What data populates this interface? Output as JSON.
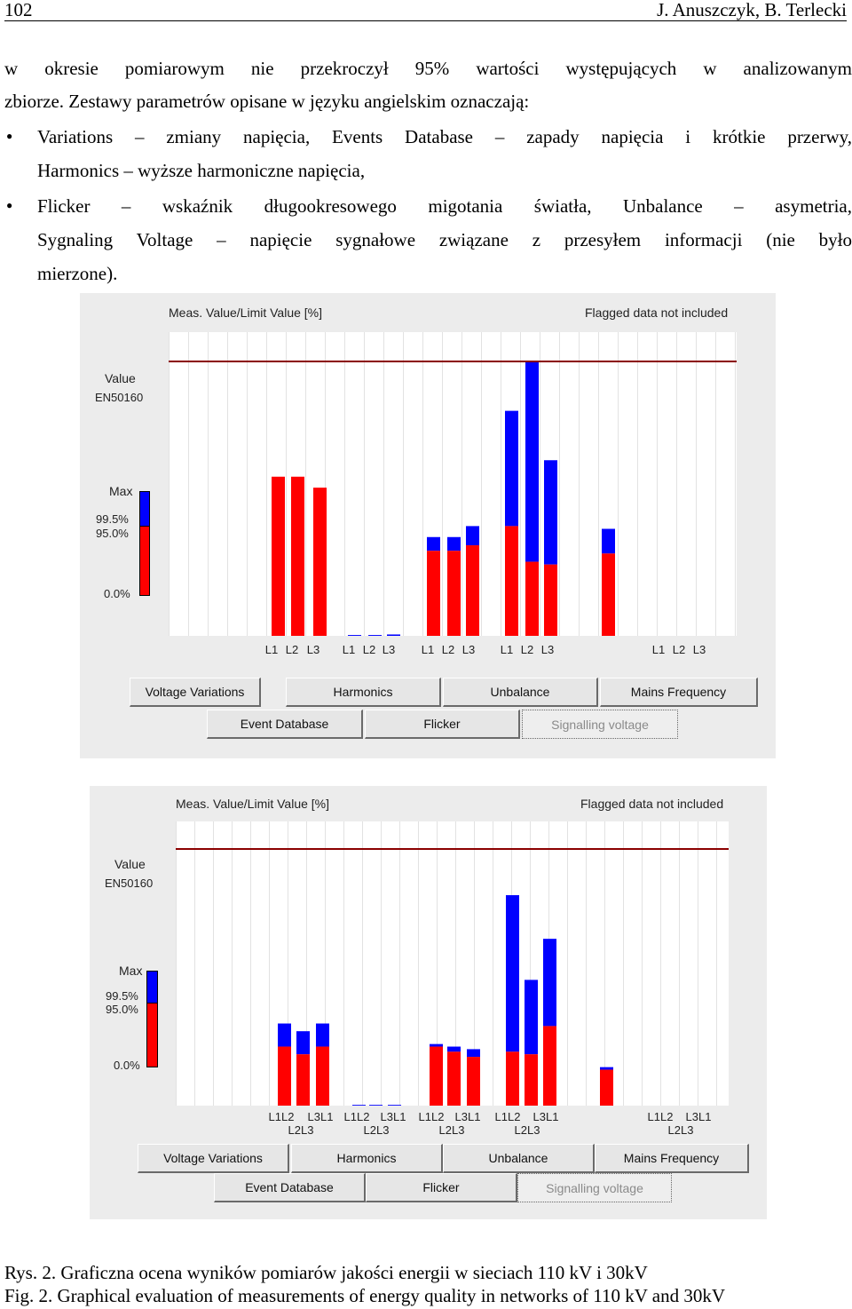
{
  "header": {
    "page_number": "102",
    "authors": "J. Anuszczyk, B. Terlecki"
  },
  "text": {
    "line1": "w okresie pomiarowym nie przekroczył 95% wartości występujących w analizowanym",
    "line2": "zbiorze. Zestawy parametrów opisane w języku angielskim oznaczają:",
    "bullet1_line1": "Variations – zmiany napięcia, Events Database – zapady napięcia i krótkie przerwy,",
    "bullet1_line2": "Harmonics – wyższe harmoniczne napięcia,",
    "bullet2_line1": "Flicker – wskaźnik długookresowego migotania światła, Unbalance – asymetria,",
    "bullet2_line2": "Sygnaling Voltage – napięcie sygnałowe związane z przesyłem informacji (nie było",
    "bullet2_line3": "mierzone)."
  },
  "charts": [
    {
      "title": "Meas. Value/Limit Value [%]",
      "flag_note": "Flagged data not included",
      "legend": {
        "value_label": "Value",
        "standard": "EN50160",
        "max": "Max",
        "p995": "99.5%",
        "p950": "95.0%",
        "zero": "0.0%"
      },
      "tick_labels": [
        "L1",
        "L2",
        "L3",
        "L1",
        "L2",
        "L3",
        "L1",
        "L2",
        "L3",
        "L1",
        "L2",
        "L3",
        "L1",
        "L2",
        "L3"
      ],
      "buttons_row1": [
        "Voltage Variations",
        "Harmonics",
        "Unbalance",
        "Mains Frequency"
      ],
      "buttons_row2": [
        "Event Database",
        "Flicker",
        "Signalling voltage"
      ]
    },
    {
      "title": "Meas. Value/Limit Value [%]",
      "flag_note": "Flagged data not included",
      "legend": {
        "value_label": "Value",
        "standard": "EN50160",
        "max": "Max",
        "p995": "99.5%",
        "p950": "95.0%",
        "zero": "0.0%"
      },
      "tick_labels_top": [
        "L1L2",
        "L3L1",
        "L1L2",
        "L3L1",
        "L1L2",
        "L3L1",
        "L1L2",
        "L3L1",
        "L1L2",
        "L3L1"
      ],
      "tick_labels_bottom": [
        "L2L3",
        "L2L3",
        "L2L3",
        "L2L3",
        "L2L3"
      ],
      "buttons_row1": [
        "Voltage Variations",
        "Harmonics",
        "Unbalance",
        "Mains Frequency"
      ],
      "buttons_row2": [
        "Event Database",
        "Flicker",
        "Signalling voltage"
      ]
    }
  ],
  "chart_data": [
    {
      "type": "bar",
      "title": "Meas. Value/Limit Value [%]",
      "limit_line": 100,
      "colors": {
        "p95": "#ff0000",
        "max": "#0000ff",
        "limit": "#8b0000"
      },
      "series": [
        {
          "name": "95.0%",
          "values": [
            58,
            58,
            54,
            0,
            0,
            0,
            31,
            31,
            33,
            40,
            27,
            26,
            30,
            0,
            0,
            0,
            16
          ]
        },
        {
          "name": "Max",
          "values": [
            58,
            58,
            54,
            0.3,
            0.3,
            0.5,
            36,
            36,
            40,
            82,
            100,
            64,
            39,
            0,
            0,
            0,
            16
          ]
        }
      ]
    },
    {
      "type": "bar",
      "title": "Meas. Value/Limit Value [%]",
      "limit_line": 100,
      "colors": {
        "p95": "#ff0000",
        "max": "#0000ff",
        "limit": "#8b0000"
      },
      "series": [
        {
          "name": "95.0%",
          "values": [
            23,
            20,
            23,
            0,
            0,
            0,
            23,
            21,
            19,
            21,
            20,
            31,
            14,
            0,
            0,
            0,
            10
          ]
        },
        {
          "name": "Max",
          "values": [
            32,
            29,
            32,
            0.3,
            0.3,
            0.3,
            24,
            23,
            22,
            82,
            49,
            65,
            15,
            0,
            0,
            0,
            10
          ]
        }
      ]
    }
  ],
  "caption": {
    "pl": "Rys. 2. Graficzna ocena wyników pomiarów jakości energii w sieciach 110 kV i 30kV",
    "en": "Fig. 2. Graphical evaluation of measurements of energy quality in networks of 110 kV and 30kV"
  }
}
